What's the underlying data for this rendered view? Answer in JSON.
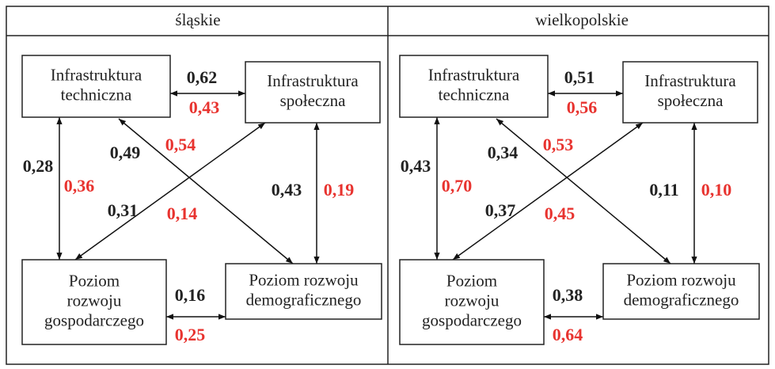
{
  "panels": [
    {
      "title": "śląskie",
      "nodes": [
        {
          "lines": [
            "Infrastruktura",
            "techniczna"
          ]
        },
        {
          "lines": [
            "Infrastruktura",
            "społeczna"
          ]
        },
        {
          "lines": [
            "Poziom",
            "rozwoju",
            "gospodarczego"
          ]
        },
        {
          "lines": [
            "Poziom rozwoju",
            "demograficznego"
          ]
        }
      ],
      "edges": [
        {
          "values": [
            "0,62",
            "0,43"
          ]
        },
        {
          "values": [
            "0,28",
            "0,36"
          ]
        },
        {
          "values": [
            "0,49",
            "0,54"
          ]
        },
        {
          "values": [
            "0,31",
            "0,14"
          ]
        },
        {
          "values": [
            "0,43",
            "0,19"
          ]
        },
        {
          "values": [
            "0,16",
            "0,25"
          ]
        }
      ]
    },
    {
      "title": "wielkopolskie",
      "nodes": [
        {
          "lines": [
            "Infrastruktura",
            "techniczna"
          ]
        },
        {
          "lines": [
            "Infrastruktura",
            "społeczna"
          ]
        },
        {
          "lines": [
            "Poziom",
            "rozwoju",
            "gospodarczego"
          ]
        },
        {
          "lines": [
            "Poziom rozwoju",
            "demograficznego"
          ]
        }
      ],
      "edges": [
        {
          "values": [
            "0,51",
            "0,56"
          ]
        },
        {
          "values": [
            "0,43",
            "0,70"
          ]
        },
        {
          "values": [
            "0,34",
            "0,53"
          ]
        },
        {
          "values": [
            "0,37",
            "0,45"
          ]
        },
        {
          "values": [
            "0,11",
            "0,10"
          ]
        },
        {
          "values": [
            "0,38",
            "0,64"
          ]
        }
      ]
    }
  ]
}
